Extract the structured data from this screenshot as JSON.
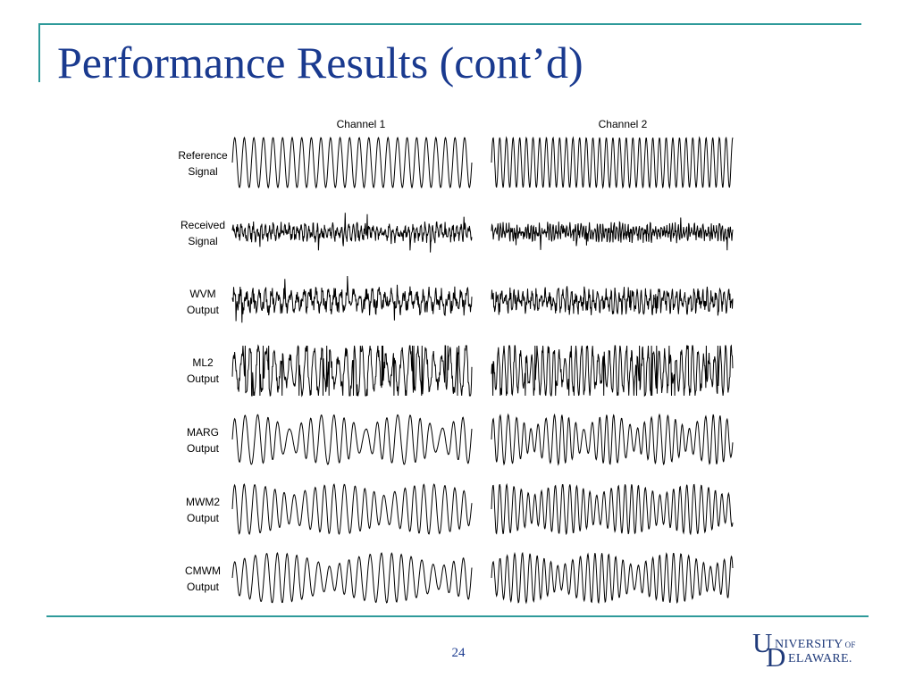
{
  "slide": {
    "title": "Performance Results (cont’d)",
    "page_number": "24"
  },
  "figure": {
    "columns": [
      "Channel 1",
      "Channel 2"
    ],
    "rows": [
      {
        "id": "reference",
        "lines": [
          "Reference",
          "Signal"
        ]
      },
      {
        "id": "received",
        "lines": [
          "Received",
          "Signal"
        ]
      },
      {
        "id": "wvm",
        "lines": [
          "WVM",
          "Output"
        ]
      },
      {
        "id": "ml2",
        "lines": [
          "ML2",
          "Output"
        ]
      },
      {
        "id": "marg",
        "lines": [
          "MARG",
          "Output"
        ]
      },
      {
        "id": "mwm2",
        "lines": [
          "MWM2",
          "Output"
        ]
      },
      {
        "id": "cmwm",
        "lines": [
          "CMWM",
          "Output"
        ]
      }
    ]
  },
  "logo": {
    "letters": [
      "U",
      "D"
    ],
    "top_text": "NIVERSITY",
    "of_text": "OF",
    "bottom_text": "ELAWARE."
  },
  "colors": {
    "accent_rule": "#2e9a9a",
    "title": "#1a3a8f",
    "logo": "#1f3a7a",
    "waveform": "#000000"
  }
}
